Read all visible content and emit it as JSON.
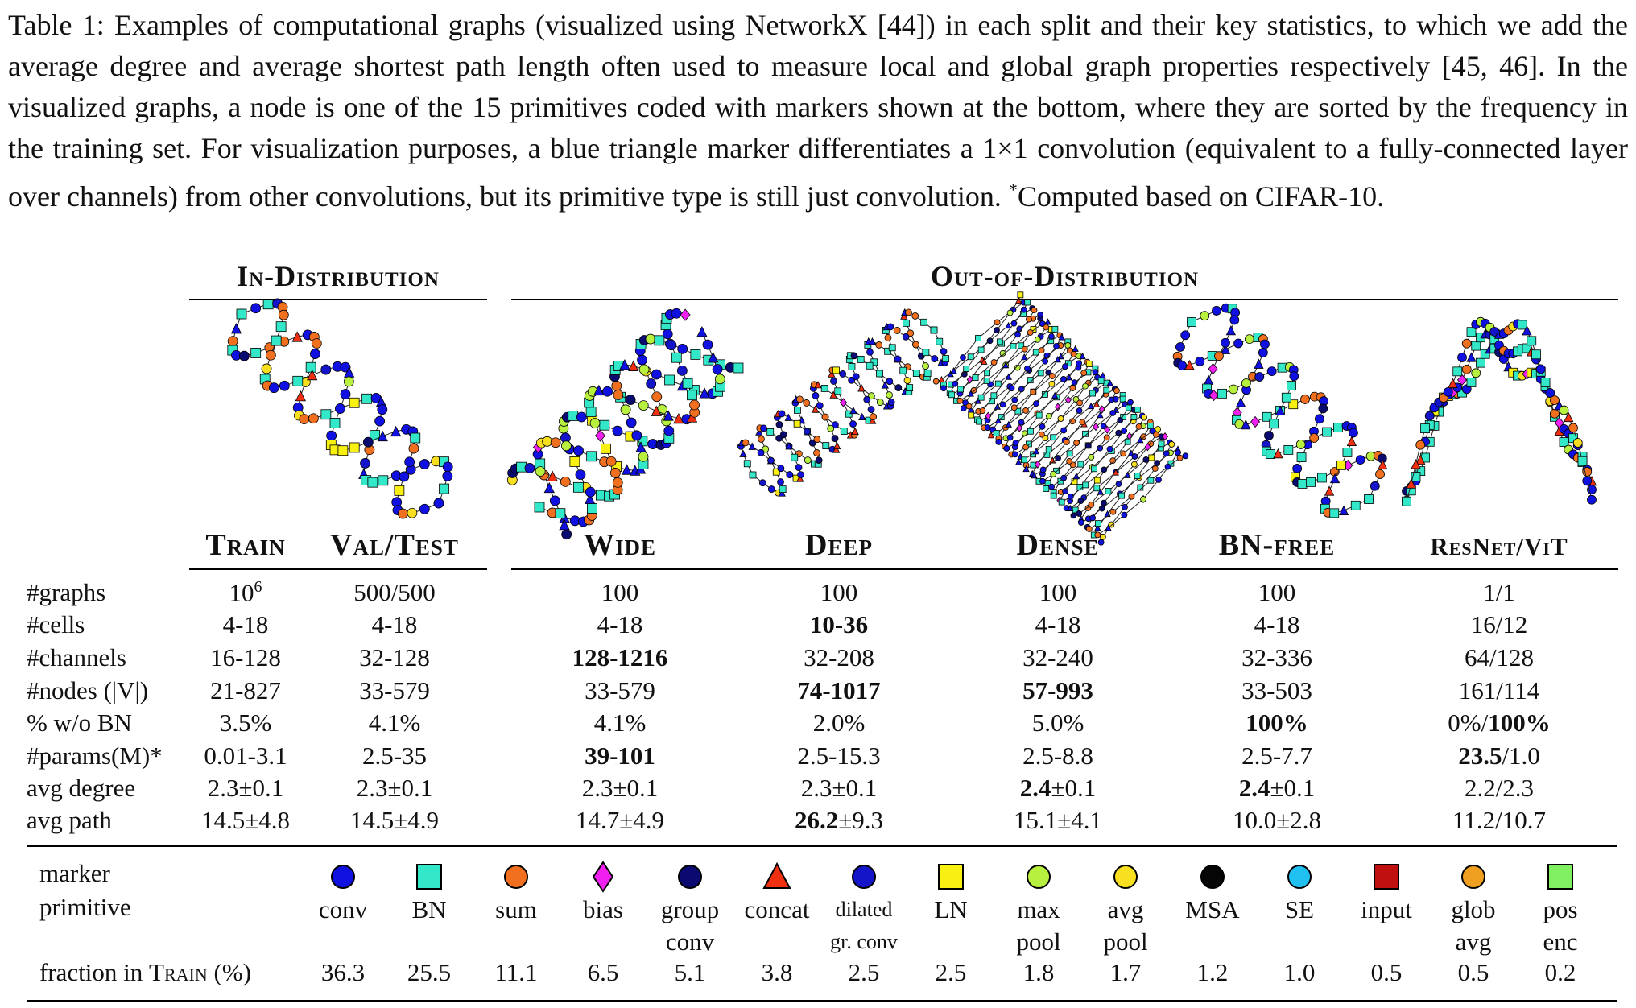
{
  "caption": {
    "lines": [
      "Table 1: Examples of computational graphs (visualized using NetworkX [44]) in each split and their key",
      "statistics, to which we add the average degree and average shortest path length often used to measure local and",
      "global graph properties respectively [45, 46]. In the visualized graphs, a node is one of the 15 primitives coded",
      "with markers shown at the bottom, where they are sorted by the frequency in the training set. For visualization",
      "purposes, a blue triangle marker differentiates a 1×1 convolution (equivalent to a fully-connected layer over",
      "channels) from other convolutions, but its primitive type is still just convolution. "
    ],
    "footnote_mark": "*",
    "footnote_text": "Computed based on CIFAR-10."
  },
  "groups": {
    "in_distribution": "In-Distribution",
    "out_of_distribution": "Out-of-Distribution"
  },
  "columns": [
    "Train",
    "Val/Test",
    "Wide",
    "Deep",
    "Dense",
    "BN-free",
    "ResNet/ViT"
  ],
  "rows": [
    {
      "label": "#graphs",
      "cells": [
        "10^6",
        "500/500",
        "100",
        "100",
        "100",
        "100",
        "1/1"
      ]
    },
    {
      "label": "#cells",
      "cells": [
        "4-18",
        "4-18",
        "4-18",
        "10-36",
        "4-18",
        "4-18",
        "16/12"
      ]
    },
    {
      "label": "#channels",
      "cells": [
        "16-128",
        "32-128",
        "128-1216",
        "32-208",
        "32-240",
        "32-336",
        "64/128"
      ]
    },
    {
      "label": "#nodes (|V|)",
      "cells": [
        "21-827",
        "33-579",
        "33-579",
        "74-1017",
        "57-993",
        "33-503",
        "161/114"
      ]
    },
    {
      "label": "% w/o BN",
      "cells": [
        "3.5%",
        "4.1%",
        "4.1%",
        "2.0%",
        "5.0%",
        "100%",
        "0%/100%"
      ]
    },
    {
      "label": "#params(M)*",
      "cells": [
        "0.01-3.1",
        "2.5-35",
        "39-101",
        "2.5-15.3",
        "2.5-8.8",
        "2.5-7.7",
        "23.5/1.0"
      ]
    },
    {
      "label": "avg degree",
      "cells": [
        "2.3±0.1",
        "2.3±0.1",
        "2.3±0.1",
        "2.3±0.1",
        "2.4±0.1",
        "2.4±0.1",
        "2.2/2.3"
      ]
    },
    {
      "label": "avg path",
      "cells": [
        "14.5±4.8",
        "14.5±4.9",
        "14.7±4.9",
        "26.2±9.3",
        "15.1±4.1",
        "10.0±2.8",
        "11.2/10.7"
      ]
    }
  ],
  "legend": {
    "marker_label": "marker",
    "primitive_label": "primitive",
    "fraction_label_prefix": "fraction in ",
    "fraction_label_sc": "Train",
    "fraction_label_suffix": " (%)",
    "primitives": [
      {
        "name": [
          "conv"
        ],
        "fraction": "36.3",
        "shape": "circle",
        "color": "#1010e0"
      },
      {
        "name": [
          "BN"
        ],
        "fraction": "25.5",
        "shape": "square",
        "color": "#33e8c8"
      },
      {
        "name": [
          "sum"
        ],
        "fraction": "11.1",
        "shape": "circle",
        "color": "#f07020"
      },
      {
        "name": [
          "bias"
        ],
        "fraction": "6.5",
        "shape": "diamond",
        "color": "#f020f0"
      },
      {
        "name": [
          "group",
          "conv"
        ],
        "fraction": "5.1",
        "shape": "circle",
        "color": "#0a0a70"
      },
      {
        "name": [
          "concat"
        ],
        "fraction": "3.8",
        "shape": "triangle",
        "color": "#f03010"
      },
      {
        "name": [
          "dilated",
          "gr. conv"
        ],
        "fraction": "2.5",
        "shape": "circle",
        "color": "#1414c8"
      },
      {
        "name": [
          "LN"
        ],
        "fraction": "2.5",
        "shape": "square",
        "color": "#f8f010"
      },
      {
        "name": [
          "max",
          "pool"
        ],
        "fraction": "1.8",
        "shape": "circle",
        "color": "#b8f040"
      },
      {
        "name": [
          "avg",
          "pool"
        ],
        "fraction": "1.7",
        "shape": "circle",
        "color": "#f8e020"
      },
      {
        "name": [
          "MSA"
        ],
        "fraction": "1.2",
        "shape": "circle",
        "color": "#050505"
      },
      {
        "name": [
          "SE"
        ],
        "fraction": "1.0",
        "shape": "circle",
        "color": "#20c0f0"
      },
      {
        "name": [
          "input"
        ],
        "fraction": "0.5",
        "shape": "square",
        "color": "#c01010"
      },
      {
        "name": [
          "glob",
          "avg"
        ],
        "fraction": "0.5",
        "shape": "circle",
        "color": "#f0a020"
      },
      {
        "name": [
          "pos",
          "enc"
        ],
        "fraction": "0.2",
        "shape": "square",
        "color": "#80f060"
      }
    ]
  }
}
